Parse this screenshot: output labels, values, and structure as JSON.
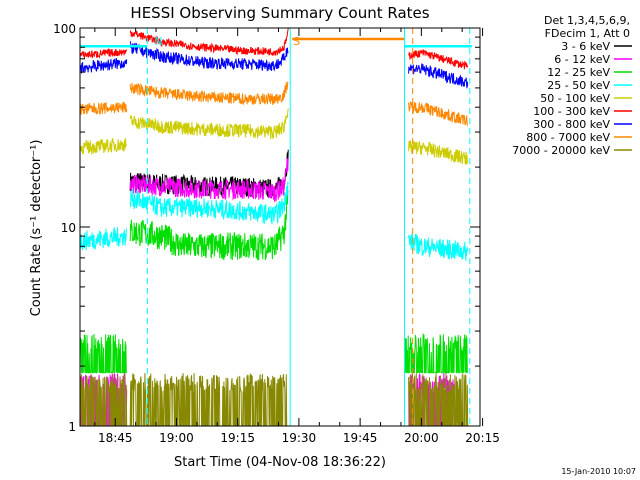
{
  "chart_data": {
    "type": "line",
    "title": "HESSI Observing Summary Count Rates",
    "xlabel": "Start Time (04-Nov-08 18:36:22)",
    "ylabel": "Count Rate (s⁻¹ detector⁻¹)",
    "yscale": "log",
    "ylim": [
      1,
      100
    ],
    "xlim_minutes": [
      0,
      98
    ],
    "x_tick_labels": [
      "18:45",
      "19:00",
      "19:15",
      "19:30",
      "19:45",
      "20:00",
      "20:15"
    ],
    "y_tick_labels": [
      "1",
      "10",
      "100"
    ],
    "timestamp": "15-Jan-2010 10:07",
    "legend": {
      "placement": "outside-right",
      "header": [
        "Det 1,3,4,5,6,9,",
        "FDecim 1, Att 0"
      ],
      "entries": [
        {
          "label": "3 - 6 keV",
          "color": "#000000"
        },
        {
          "label": "6 - 12 keV",
          "color": "#ff00ff"
        },
        {
          "label": "12 - 25 keV",
          "color": "#00dd00"
        },
        {
          "label": "25 - 50 keV",
          "color": "#00ffff"
        },
        {
          "label": "50 - 100 keV",
          "color": "#cccc00"
        },
        {
          "label": "100 - 300 keV",
          "color": "#ff0000"
        },
        {
          "label": "300 - 800 keV",
          "color": "#0000ff"
        },
        {
          "label": "800 - 7000 keV",
          "color": "#ff8800"
        },
        {
          "label": "7000 - 20000 keV",
          "color": "#888800"
        }
      ]
    },
    "annotations": [
      {
        "text": "N",
        "color": "#00ffff",
        "x_minute": 17.5
      },
      {
        "text": "S",
        "color": "#ff8800",
        "x_minute": 51.5
      }
    ],
    "vertical_markers": [
      {
        "x_minute": 16.5,
        "color": "#00ffff",
        "style": "dashed"
      },
      {
        "x_minute": 51.5,
        "color": "#00ffff",
        "style": "solid"
      },
      {
        "x_minute": 79.5,
        "color": "#00ffff",
        "style": "solid"
      },
      {
        "x_minute": 81.5,
        "color": "#ff8800",
        "style": "dashed"
      },
      {
        "x_minute": 95.5,
        "color": "#00ffff",
        "style": "dashed"
      }
    ],
    "series": [
      {
        "name": "3 - 6 keV",
        "color": "#000000",
        "segments": [
          [
            [
              12.3,
              17
            ],
            [
              20,
              16.5
            ],
            [
              30,
              16
            ],
            [
              40,
              16
            ],
            [
              48,
              15.5
            ],
            [
              50,
              17
            ],
            [
              51,
              23
            ]
          ]
        ]
      },
      {
        "name": "6 - 12 keV",
        "color": "#ff00ff",
        "segments": [
          [
            [
              0,
              1.4
            ],
            [
              11.5,
              1.4
            ]
          ],
          [
            [
              12.3,
              16.5
            ],
            [
              20,
              16
            ],
            [
              30,
              15.5
            ],
            [
              40,
              15.5
            ],
            [
              48,
              15
            ],
            [
              50,
              16
            ],
            [
              51,
              22
            ]
          ],
          [
            [
              80.5,
              1.4
            ],
            [
              92,
              1.4
            ]
          ]
        ]
      },
      {
        "name": "12 - 25 keV",
        "color": "#00dd00",
        "segments": [
          [
            [
              0,
              2.4
            ],
            [
              11,
              2.4
            ],
            [
              11.5,
              3.6
            ]
          ],
          [
            [
              12.3,
              9.5
            ],
            [
              20,
              9
            ],
            [
              25,
              8
            ],
            [
              30,
              8
            ],
            [
              40,
              8
            ],
            [
              48,
              8
            ],
            [
              50,
              9.5
            ],
            [
              51,
              14
            ]
          ],
          [
            [
              79.5,
              2.8
            ],
            [
              80.5,
              2.5
            ],
            [
              95,
              2.3
            ]
          ]
        ]
      },
      {
        "name": "25 - 50 keV",
        "color": "#00ffff",
        "segments": [
          [
            [
              0,
              8.5
            ],
            [
              11.5,
              9
            ]
          ],
          [
            [
              12.3,
              14
            ],
            [
              20,
              12.5
            ],
            [
              30,
              12.5
            ],
            [
              40,
              12
            ],
            [
              48,
              11.5
            ],
            [
              50,
              13
            ],
            [
              51,
              17
            ]
          ],
          [
            [
              80.5,
              8.5
            ],
            [
              84,
              8
            ],
            [
              95,
              7.5
            ]
          ]
        ]
      },
      {
        "name": "50 - 100 keV",
        "color": "#cccc00",
        "segments": [
          [
            [
              0,
              25
            ],
            [
              11.5,
              26
            ]
          ],
          [
            [
              12.3,
              34
            ],
            [
              20,
              32
            ],
            [
              30,
              31
            ],
            [
              40,
              30.5
            ],
            [
              48,
              30
            ],
            [
              50,
              32
            ],
            [
              51,
              40
            ]
          ],
          [
            [
              80.5,
              25
            ],
            [
              84,
              25
            ],
            [
              95,
              22
            ]
          ]
        ]
      },
      {
        "name": "100 - 300 keV",
        "color": "#ff0000",
        "segments": [
          [
            [
              0,
              73
            ],
            [
              11.5,
              76
            ]
          ],
          [
            [
              12.3,
              95
            ],
            [
              20,
              85
            ],
            [
              30,
              80
            ],
            [
              40,
              77
            ],
            [
              48,
              76
            ],
            [
              50,
              80
            ],
            [
              51,
              95
            ]
          ],
          [
            [
              80.5,
              73
            ],
            [
              84,
              75
            ],
            [
              95,
              64
            ]
          ]
        ]
      },
      {
        "name": "300 - 800 keV",
        "color": "#0000ff",
        "segments": [
          [
            [
              0,
              63
            ],
            [
              11.5,
              67
            ]
          ],
          [
            [
              12.3,
              80
            ],
            [
              20,
              72
            ],
            [
              30,
              67
            ],
            [
              40,
              66
            ],
            [
              48,
              65
            ],
            [
              50,
              70
            ],
            [
              51,
              80
            ]
          ],
          [
            [
              80.5,
              63
            ],
            [
              84,
              62
            ],
            [
              95,
              53
            ]
          ]
        ]
      },
      {
        "name": "800 - 7000 keV",
        "color": "#ff8800",
        "segments": [
          [
            [
              0,
              39
            ],
            [
              11.5,
              40
            ]
          ],
          [
            [
              12.3,
              50
            ],
            [
              20,
              47
            ],
            [
              30,
              45
            ],
            [
              40,
              44
            ],
            [
              48,
              44
            ],
            [
              50,
              46
            ],
            [
              51,
              55
            ]
          ],
          [
            [
              52,
              88
            ],
            [
              79.5,
              88
            ]
          ],
          [
            [
              80.5,
              40
            ],
            [
              84,
              40
            ],
            [
              95,
              34
            ]
          ]
        ]
      },
      {
        "name": "7000 - 20000 keV",
        "color": "#888800",
        "segments": [
          [
            [
              0,
              1.4
            ],
            [
              11.5,
              1.4
            ]
          ],
          [
            [
              12.3,
              1.6
            ],
            [
              20,
              1.5
            ],
            [
              30,
              1.3
            ],
            [
              40,
              1.3
            ],
            [
              50,
              1.5
            ],
            [
              51,
              1.6
            ]
          ],
          [
            [
              80.5,
              1.4
            ],
            [
              95,
              1.3
            ]
          ]
        ]
      }
    ],
    "flat_lines": [
      {
        "series": "25 - 50 keV",
        "color": "#00ffff",
        "segments": [
          [
            0,
            16.5,
            81
          ],
          [
            51.5,
            51.5,
            100
          ],
          [
            79.5,
            96,
            81
          ]
        ]
      }
    ]
  }
}
